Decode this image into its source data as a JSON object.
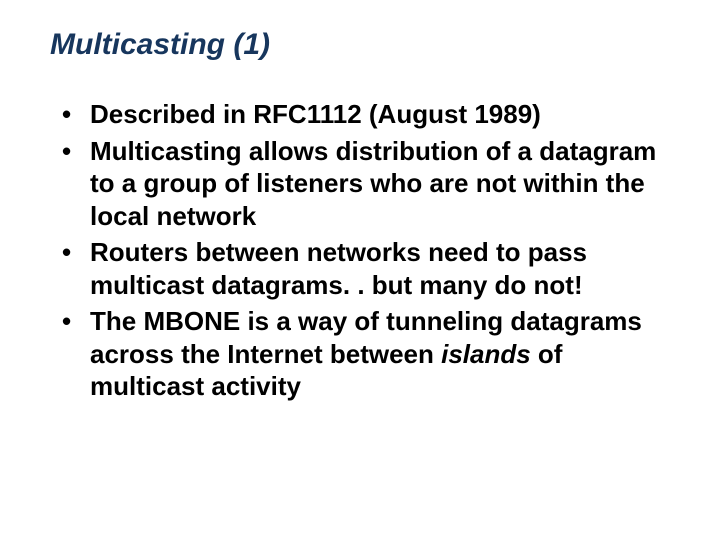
{
  "slide": {
    "title": "Multicasting (1)",
    "title_color": "#17365d",
    "title_fontsize": 30,
    "body_fontsize": 26,
    "body_color": "#000000",
    "background_color": "#ffffff",
    "bullets": [
      {
        "text": "Described in RFC1112 (August 1989)"
      },
      {
        "text": "Multicasting allows distribution of a datagram to a group of listeners who are not within the local network"
      },
      {
        "text": "Routers between networks need to pass multicast datagrams. . but many do not!"
      },
      {
        "prefix": "The MBONE is a way of tunneling datagrams across the Internet between ",
        "italic": "islands",
        "suffix": " of multicast activity"
      }
    ]
  }
}
